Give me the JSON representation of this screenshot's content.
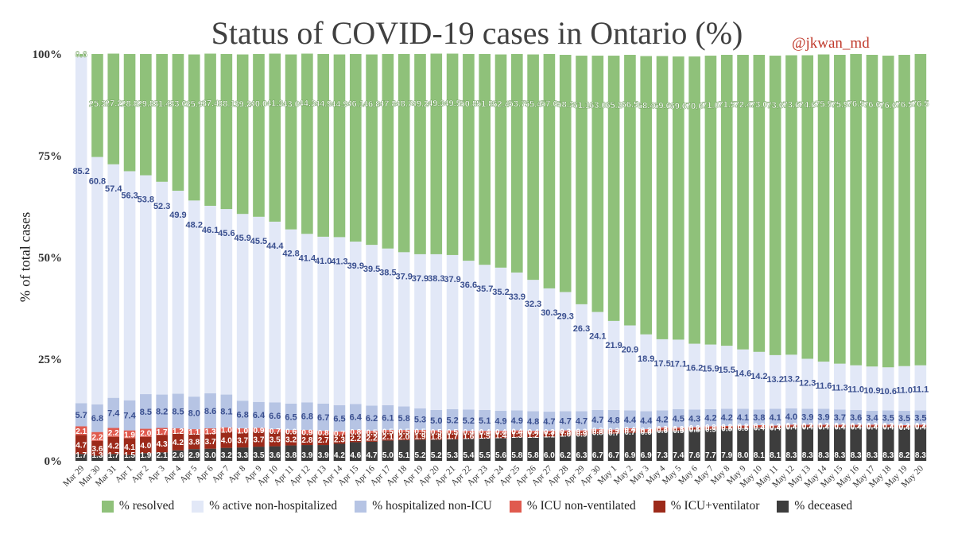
{
  "header": {
    "title": "Status of COVID-19 cases in Ontario (%)",
    "handle": "@jkwan_md"
  },
  "chart_data": {
    "type": "bar",
    "stacked": true,
    "title": "Status of COVID-19 cases in Ontario (%)",
    "ylabel": "% of total cases",
    "ylim": [
      0,
      100
    ],
    "yticks": [
      "0%",
      "25%",
      "50%",
      "75%",
      "100%"
    ],
    "categories": [
      "Mar 29",
      "Mar 30",
      "Mar 31",
      "Apr 1",
      "Apr 2",
      "Apr 3",
      "Apr 4",
      "Apr 5",
      "Apr 6",
      "Apr 7",
      "Apr 8",
      "Apr 9",
      "Apr 10",
      "Apr 11",
      "Apr 12",
      "Apr 13",
      "Apr 14",
      "Apr 15",
      "Apr 16",
      "Apr 17",
      "Apr 18",
      "Apr 19",
      "Apr 20",
      "Apr 21",
      "Apr 22",
      "Apr 23",
      "Apr 24",
      "Apr 25",
      "Apr 26",
      "Apr 27",
      "Apr 28",
      "Apr 29",
      "Apr 30",
      "May 1",
      "May 2",
      "May 3",
      "May 4",
      "May 5",
      "May 6",
      "May 7",
      "May 8",
      "May 9",
      "May 10",
      "May 11",
      "May 12",
      "May 13",
      "May 14",
      "May 15",
      "May 16",
      "May 17",
      "May 18",
      "May 19",
      "May 20"
    ],
    "series": [
      {
        "name": "% deceased",
        "color": "#3d3d3d",
        "label_color": "#ffffff",
        "values": [
          1.7,
          1.3,
          1.7,
          1.5,
          1.9,
          2.1,
          2.6,
          2.9,
          3.0,
          3.2,
          3.3,
          3.5,
          3.6,
          3.8,
          3.9,
          3.9,
          4.2,
          4.6,
          4.7,
          5.0,
          5.1,
          5.2,
          5.2,
          5.3,
          5.4,
          5.5,
          5.6,
          5.8,
          5.8,
          6.0,
          6.2,
          6.3,
          6.7,
          6.7,
          6.9,
          6.9,
          7.3,
          7.4,
          7.6,
          7.7,
          7.9,
          8.0,
          8.1,
          8.1,
          8.3,
          8.3,
          8.3,
          8.3,
          8.3,
          8.3,
          8.3,
          8.2,
          8.3
        ]
      },
      {
        "name": "% ICU+ventilator",
        "color": "#9c2a1a",
        "label_color": "#ffffff",
        "values": [
          4.7,
          3.6,
          4.2,
          4.1,
          4.0,
          4.3,
          4.2,
          3.8,
          3.7,
          4.0,
          3.7,
          3.7,
          3.5,
          3.2,
          2.8,
          2.7,
          2.3,
          2.2,
          2.2,
          2.1,
          2.0,
          1.9,
          1.8,
          1.7,
          1.6,
          1.5,
          1.4,
          1.3,
          1.2,
          1.1,
          1.0,
          0.9,
          0.8,
          0.7,
          0.7,
          0.6,
          0.6,
          0.5,
          0.5,
          0.5,
          0.5,
          0.5,
          0.4,
          0.4,
          0.4,
          0.4,
          0.4,
          0.4,
          0.4,
          0.4,
          0.4,
          0.4,
          0.4
        ]
      },
      {
        "name": "% ICU non-ventilated",
        "color": "#e05a4e",
        "label_color": "#ffffff",
        "values": [
          2.1,
          2.2,
          2.2,
          1.9,
          2.0,
          1.7,
          1.2,
          1.1,
          1.3,
          1.0,
          1.0,
          0.9,
          0.7,
          0.6,
          0.9,
          0.8,
          0.7,
          0.8,
          0.5,
          0.5,
          0.5,
          0.5,
          0.5,
          0.5,
          0.4,
          0.4,
          0.4,
          0.4,
          0.4,
          0.3,
          0.3,
          0.3,
          0.3,
          0.3,
          0.4,
          0.3,
          0.3,
          0.3,
          0.2,
          0.3,
          0.2,
          0.2,
          0.3,
          0.2,
          0.2,
          0.2,
          0.2,
          0.2,
          0.2,
          0.2,
          0.2,
          0.2,
          0.2
        ]
      },
      {
        "name": "% hospitalized non-ICU",
        "color": "#b6c4e4",
        "label_color": "#3a4f8f",
        "values": [
          5.7,
          6.8,
          7.4,
          7.4,
          8.5,
          8.2,
          8.5,
          8.0,
          8.6,
          8.1,
          6.8,
          6.4,
          6.6,
          6.5,
          6.8,
          6.7,
          6.5,
          6.4,
          6.2,
          6.1,
          5.8,
          5.3,
          5.0,
          5.2,
          5.2,
          5.1,
          4.9,
          4.9,
          4.8,
          4.7,
          4.7,
          4.7,
          4.7,
          4.8,
          4.4,
          4.4,
          4.2,
          4.5,
          4.3,
          4.2,
          4.2,
          4.1,
          3.8,
          4.1,
          4.0,
          3.9,
          3.9,
          3.7,
          3.6,
          3.4,
          3.5,
          3.5,
          3.5
        ]
      },
      {
        "name": "% active non-hospitalized",
        "color": "#e2e8f7",
        "label_color": "#3a4f8f",
        "values": [
          85.2,
          60.8,
          57.4,
          56.3,
          53.8,
          52.3,
          49.9,
          48.2,
          46.1,
          45.6,
          45.9,
          45.5,
          44.4,
          42.8,
          41.4,
          41.0,
          41.3,
          39.9,
          39.5,
          38.5,
          37.9,
          37.9,
          38.3,
          37.9,
          36.6,
          35.7,
          35.2,
          33.9,
          32.3,
          30.3,
          29.3,
          26.3,
          24.1,
          21.9,
          20.9,
          18.9,
          17.5,
          17.1,
          16.2,
          15.9,
          15.5,
          14.6,
          14.2,
          13.2,
          13.2,
          12.3,
          11.6,
          11.3,
          11.0,
          10.9,
          10.6,
          11.0,
          11.1
        ]
      },
      {
        "name": "% resolved",
        "color": "#8fc17a",
        "label_color": "#ffffff",
        "values": [
          0.6,
          25.3,
          27.2,
          28.8,
          29.8,
          31.4,
          33.6,
          35.9,
          37.4,
          38.1,
          39.2,
          40.0,
          41.3,
          43.0,
          44.3,
          44.9,
          44.9,
          46.1,
          46.8,
          47.8,
          48.7,
          49.2,
          49.3,
          49.5,
          50.8,
          51.8,
          52.4,
          53.7,
          55.4,
          57.6,
          58.3,
          61.1,
          63.0,
          65.2,
          66.5,
          68.4,
          69.6,
          69.6,
          70.6,
          71.0,
          71.5,
          72.4,
          73.0,
          73.6,
          73.6,
          74.6,
          75.5,
          75.9,
          76.5,
          76.6,
          76.6,
          76.5,
          76.5
        ]
      }
    ],
    "legend": [
      "% resolved",
      "% active non-hospitalized",
      "% hospitalized non-ICU",
      "% ICU non-ventilated",
      "% ICU+ventilator",
      "% deceased"
    ],
    "legend_placement": "bottom",
    "grid": false
  }
}
